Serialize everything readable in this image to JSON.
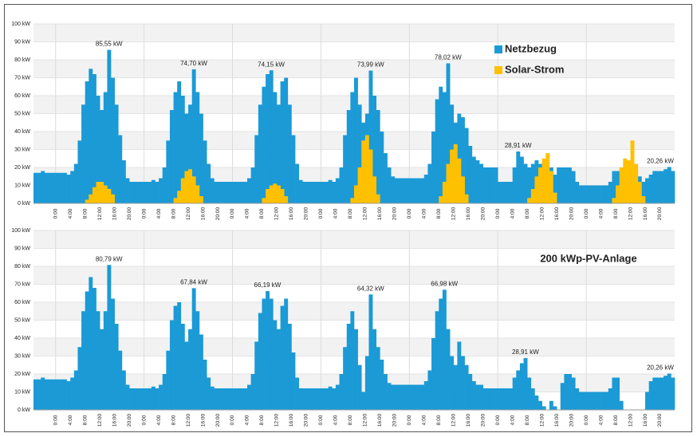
{
  "chart_data": [
    {
      "type": "bar",
      "legend": "upper right",
      "grid": true,
      "ylim": [
        0,
        100
      ],
      "yticks": [
        {
          "value": 0,
          "label": "0 kW"
        },
        {
          "value": 10,
          "label": "10 kW"
        },
        {
          "value": 20,
          "label": "20 kW"
        },
        {
          "value": 30,
          "label": "30 kW"
        },
        {
          "value": 40,
          "label": "40 kW"
        },
        {
          "value": 50,
          "label": "50 kW"
        },
        {
          "value": 60,
          "label": "60 kW"
        },
        {
          "value": 70,
          "label": "70 kW"
        },
        {
          "value": 80,
          "label": "80 kW"
        },
        {
          "value": 90,
          "label": "90 kW"
        },
        {
          "value": 100,
          "label": "100 kW"
        }
      ],
      "categories": [
        null,
        null,
        null,
        null,
        null,
        null,
        "0:00",
        null,
        null,
        null,
        "4:00",
        null,
        null,
        null,
        "8:00",
        null,
        null,
        null,
        "12:00",
        null,
        null,
        null,
        "16:00",
        null,
        null,
        null,
        "20:00",
        null,
        null,
        null,
        "0:00",
        null,
        null,
        null,
        "4:00",
        null,
        null,
        null,
        "8:00",
        null,
        null,
        null,
        "12:00",
        null,
        null,
        null,
        "16:00",
        null,
        null,
        null,
        "20:00",
        null,
        null,
        null,
        "0:00",
        null,
        null,
        null,
        "4:00",
        null,
        null,
        null,
        "8:00",
        null,
        null,
        null,
        "12:00",
        null,
        null,
        null,
        "16:00",
        null,
        null,
        null,
        "20:00",
        null,
        null,
        null,
        "0:00",
        null,
        null,
        null,
        "4:00",
        null,
        null,
        null,
        "8:00",
        null,
        null,
        null,
        "12:00",
        null,
        null,
        null,
        "16:00",
        null,
        null,
        null,
        "20:00",
        null,
        null,
        null,
        "0:00",
        null,
        null,
        null,
        "4:00",
        null,
        null,
        null,
        "8:00",
        null,
        null,
        null,
        "12:00",
        null,
        null,
        null,
        "16:00",
        null,
        null,
        null,
        "20:00",
        null,
        null,
        null,
        "0:00",
        null,
        null,
        null,
        "4:00",
        null,
        null,
        null,
        "8:00",
        null,
        null,
        null,
        "12:00",
        null,
        null,
        null,
        "16:00",
        null,
        null,
        null,
        "20:00",
        null,
        null,
        null,
        "0:00",
        null,
        null,
        null,
        "4:00",
        null,
        null,
        null,
        "8:00",
        null,
        null,
        null,
        "12:00",
        null,
        null,
        null,
        "16:00",
        null,
        null,
        null,
        "20:00",
        null,
        null,
        null
      ],
      "series": [
        {
          "name": "Netzbezug",
          "color": "#1b9ad6",
          "values": [
            17,
            17,
            18,
            17,
            17,
            17,
            17,
            17,
            17,
            16,
            18,
            22,
            35,
            55,
            68,
            75,
            72,
            60,
            52,
            62,
            85.55,
            70,
            55,
            38,
            24,
            14,
            12,
            12,
            12,
            12,
            12,
            12,
            13,
            12,
            14,
            20,
            35,
            52,
            62,
            68,
            60,
            50,
            55,
            74.7,
            62,
            50,
            35,
            22,
            14,
            12,
            12,
            12,
            12,
            12,
            12,
            12,
            12,
            12,
            14,
            20,
            38,
            55,
            65,
            72,
            74.15,
            62,
            55,
            68,
            70,
            55,
            38,
            22,
            13,
            12,
            12,
            12,
            12,
            12,
            12,
            12,
            13,
            12,
            14,
            20,
            38,
            52,
            62,
            70,
            55,
            45,
            50,
            73.99,
            60,
            52,
            40,
            28,
            20,
            15,
            14,
            14,
            14,
            14,
            14,
            14,
            14,
            14,
            16,
            22,
            40,
            58,
            65,
            62,
            78.02,
            55,
            45,
            50,
            48,
            42,
            32,
            26,
            24,
            22,
            20,
            20,
            20,
            20,
            12,
            12,
            12,
            12,
            20,
            28.91,
            26,
            22,
            20,
            22,
            24,
            22,
            18,
            18,
            20,
            16,
            20,
            20,
            20,
            20,
            18,
            12,
            10,
            10,
            10,
            10,
            10,
            10,
            10,
            10,
            12,
            18,
            18,
            16,
            20,
            20,
            16,
            18,
            15,
            12,
            14,
            16,
            18,
            18,
            18,
            19,
            20.26,
            18
          ]
        },
        {
          "name": "Solar-Strom",
          "color": "#ffc000",
          "values": [
            0,
            0,
            0,
            0,
            0,
            0,
            0,
            0,
            0,
            0,
            0,
            0,
            0,
            0,
            2,
            5,
            9,
            12,
            12,
            10,
            8,
            5,
            0,
            0,
            0,
            0,
            0,
            0,
            0,
            0,
            0,
            0,
            0,
            0,
            0,
            0,
            0,
            0,
            3,
            7,
            14,
            18,
            19,
            15,
            10,
            4,
            0,
            0,
            0,
            0,
            0,
            0,
            0,
            0,
            0,
            0,
            0,
            0,
            0,
            0,
            0,
            0,
            3,
            8,
            10,
            11,
            10,
            8,
            4,
            0,
            0,
            0,
            0,
            0,
            0,
            0,
            0,
            0,
            0,
            0,
            0,
            0,
            0,
            0,
            0,
            0,
            3,
            10,
            20,
            35,
            38,
            30,
            15,
            5,
            0,
            0,
            0,
            0,
            0,
            0,
            0,
            0,
            0,
            0,
            0,
            0,
            0,
            0,
            0,
            0,
            4,
            12,
            22,
            30,
            33,
            25,
            15,
            5,
            0,
            0,
            0,
            0,
            0,
            0,
            0,
            0,
            0,
            0,
            0,
            0,
            0,
            0,
            0,
            0,
            3,
            8,
            15,
            20,
            25,
            28,
            18,
            6,
            0,
            0,
            0,
            0,
            0,
            0,
            0,
            0,
            0,
            0,
            0,
            0,
            0,
            0,
            0,
            3,
            10,
            20,
            25,
            24,
            35,
            22,
            12,
            4,
            0,
            0,
            0,
            0,
            0,
            0,
            0,
            0
          ]
        }
      ],
      "annotations": [
        {
          "label": "85,55 kW",
          "value": 85.55
        },
        {
          "label": "74,70 kW",
          "value": 74.7
        },
        {
          "label": "74,15 kW",
          "value": 74.15
        },
        {
          "label": "73,99 kW",
          "value": 73.99
        },
        {
          "label": "78,02 kW",
          "value": 78.02
        },
        {
          "label": "28,91 kW",
          "value": 28.91
        },
        {
          "label": "20,26 kW",
          "value": 20.26
        }
      ]
    },
    {
      "type": "bar",
      "title": "200 kWp-PV-Anlage",
      "grid": true,
      "color": "#1b9ad6",
      "ylim": [
        0,
        100
      ],
      "yticks": [
        {
          "value": 0,
          "label": "0 kW"
        },
        {
          "value": 10,
          "label": "10 kW"
        },
        {
          "value": 20,
          "label": "20 kW"
        },
        {
          "value": 30,
          "label": "30 kW"
        },
        {
          "value": 40,
          "label": "40 kW"
        },
        {
          "value": 50,
          "label": "50 kW"
        },
        {
          "value": 60,
          "label": "60 kW"
        },
        {
          "value": 70,
          "label": "70 kW"
        },
        {
          "value": 80,
          "label": "80 kW"
        },
        {
          "value": 90,
          "label": "90 kW"
        },
        {
          "value": 100,
          "label": "100 kW"
        }
      ],
      "categories": [
        null,
        null,
        null,
        null,
        null,
        null,
        "0:00",
        null,
        null,
        null,
        "4:00",
        null,
        null,
        null,
        "8:00",
        null,
        null,
        null,
        "12:00",
        null,
        null,
        null,
        "16:00",
        null,
        null,
        null,
        "20:00",
        null,
        null,
        null,
        "0:00",
        null,
        null,
        null,
        "4:00",
        null,
        null,
        null,
        "8:00",
        null,
        null,
        null,
        "12:00",
        null,
        null,
        null,
        "16:00",
        null,
        null,
        null,
        "20:00",
        null,
        null,
        null,
        "0:00",
        null,
        null,
        null,
        "4:00",
        null,
        null,
        null,
        "8:00",
        null,
        null,
        null,
        "12:00",
        null,
        null,
        null,
        "16:00",
        null,
        null,
        null,
        "20:00",
        null,
        null,
        null,
        "0:00",
        null,
        null,
        null,
        "4:00",
        null,
        null,
        null,
        "8:00",
        null,
        null,
        null,
        "12:00",
        null,
        null,
        null,
        "16:00",
        null,
        null,
        null,
        "20:00",
        null,
        null,
        null,
        "0:00",
        null,
        null,
        null,
        "4:00",
        null,
        null,
        null,
        "8:00",
        null,
        null,
        null,
        "12:00",
        null,
        null,
        null,
        "16:00",
        null,
        null,
        null,
        "20:00",
        null,
        null,
        null,
        "0:00",
        null,
        null,
        null,
        "4:00",
        null,
        null,
        null,
        "8:00",
        null,
        null,
        null,
        "12:00",
        null,
        null,
        null,
        "16:00",
        null,
        null,
        null,
        "20:00",
        null,
        null,
        null,
        "0:00",
        null,
        null,
        null,
        "4:00",
        null,
        null,
        null,
        "8:00",
        null,
        null,
        null,
        "12:00",
        null,
        null,
        null,
        "16:00",
        null,
        null,
        null,
        "20:00",
        null,
        null,
        null
      ],
      "values": [
        17,
        17,
        18,
        17,
        17,
        17,
        17,
        17,
        17,
        16,
        18,
        22,
        35,
        55,
        66,
        74,
        68,
        55,
        45,
        55,
        80.79,
        62,
        48,
        33,
        22,
        14,
        12,
        12,
        12,
        12,
        12,
        12,
        13,
        12,
        14,
        20,
        33,
        50,
        58,
        60,
        48,
        38,
        45,
        67.84,
        55,
        42,
        28,
        18,
        13,
        12,
        12,
        12,
        12,
        12,
        12,
        12,
        12,
        12,
        14,
        20,
        38,
        54,
        62,
        66.19,
        62,
        50,
        45,
        58,
        62,
        48,
        32,
        18,
        12,
        12,
        12,
        12,
        12,
        12,
        12,
        12,
        13,
        12,
        14,
        20,
        35,
        48,
        55,
        45,
        25,
        10,
        30,
        64.32,
        45,
        35,
        28,
        20,
        15,
        14,
        14,
        14,
        14,
        14,
        14,
        14,
        14,
        14,
        16,
        22,
        40,
        55,
        62,
        66.98,
        45,
        30,
        25,
        38,
        30,
        25,
        20,
        16,
        14,
        14,
        12,
        12,
        12,
        12,
        12,
        12,
        12,
        12,
        18,
        22,
        26,
        28.91,
        18,
        12,
        8,
        5,
        2,
        0,
        5,
        2,
        0,
        15,
        20,
        20,
        18,
        12,
        10,
        10,
        10,
        10,
        10,
        10,
        10,
        10,
        12,
        18,
        18,
        5,
        0,
        0,
        0,
        0,
        0,
        0,
        10,
        16,
        18,
        18,
        18,
        19,
        20.26,
        18
      ],
      "annotations": [
        {
          "label": "80,79 kW",
          "value": 80.79
        },
        {
          "label": "67,84 kW",
          "value": 67.84
        },
        {
          "label": "66,19 kW",
          "value": 66.19
        },
        {
          "label": "64,32 kW",
          "value": 64.32
        },
        {
          "label": "66,98 kW",
          "value": 66.98
        },
        {
          "label": "28,91 kW",
          "value": 28.91
        },
        {
          "label": "20,26 kW",
          "value": 20.26
        }
      ]
    }
  ]
}
